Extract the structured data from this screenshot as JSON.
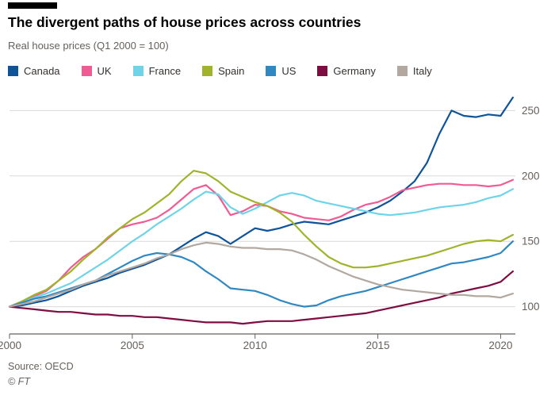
{
  "header": {
    "title": "The divergent paths of house prices across countries",
    "subtitle": "Real house prices (Q1 2000 = 100)"
  },
  "footer": {
    "source": "Source: OECD",
    "credit": "© FT"
  },
  "chart_data": {
    "type": "line",
    "title": "The divergent paths of house prices across countries",
    "subtitle": "Real house prices (Q1 2000 = 100)",
    "x_start": 2000,
    "x_step": 0.5,
    "xlim": [
      2000,
      2020.6
    ],
    "ylim": [
      84,
      266
    ],
    "x_ticks": [
      2000,
      2005,
      2010,
      2015,
      2020
    ],
    "y_ticks": [
      100,
      150,
      200,
      250
    ],
    "grid": "horizontal",
    "legend_position": "top",
    "colors": {
      "axis": "#66605c",
      "gridline": "#d9d9d9",
      "title": "#000000",
      "subtitle": "#66605c"
    },
    "series": [
      {
        "name": "Canada",
        "color": "#0f5499",
        "values": [
          100,
          101,
          103,
          105,
          108,
          112,
          116,
          119,
          122,
          126,
          129,
          132,
          136,
          140,
          146,
          152,
          157,
          154,
          148,
          154,
          160,
          158,
          160,
          163,
          165,
          164,
          163,
          166,
          169,
          172,
          176,
          181,
          188,
          196,
          210,
          232,
          250,
          246,
          245,
          247,
          246,
          260
        ]
      },
      {
        "name": "UK",
        "color": "#ef5b92",
        "values": [
          100,
          104,
          108,
          112,
          120,
          130,
          138,
          144,
          152,
          160,
          163,
          165,
          168,
          174,
          182,
          190,
          193,
          185,
          170,
          173,
          178,
          177,
          173,
          171,
          168,
          167,
          166,
          169,
          174,
          178,
          180,
          184,
          189,
          191,
          193,
          194,
          194,
          193,
          193,
          192,
          193,
          197
        ]
      },
      {
        "name": "France",
        "color": "#6ed4e8",
        "values": [
          100,
          103,
          107,
          110,
          114,
          118,
          124,
          130,
          136,
          143,
          150,
          156,
          163,
          169,
          175,
          182,
          188,
          186,
          176,
          171,
          175,
          180,
          185,
          187,
          185,
          181,
          179,
          177,
          175,
          173,
          171,
          170,
          171,
          172,
          174,
          176,
          177,
          178,
          180,
          183,
          185,
          190
        ]
      },
      {
        "name": "Spain",
        "color": "#a0b32a",
        "values": [
          100,
          104,
          109,
          113,
          120,
          127,
          136,
          144,
          153,
          160,
          167,
          172,
          179,
          186,
          196,
          204,
          202,
          196,
          188,
          184,
          180,
          177,
          172,
          165,
          155,
          146,
          138,
          133,
          130,
          130,
          131,
          133,
          135,
          137,
          139,
          142,
          145,
          148,
          150,
          151,
          150,
          155
        ]
      },
      {
        "name": "US",
        "color": "#3088c2",
        "values": [
          100,
          103,
          106,
          108,
          111,
          114,
          117,
          120,
          125,
          130,
          135,
          139,
          141,
          140,
          138,
          134,
          127,
          121,
          114,
          113,
          112,
          109,
          105,
          102,
          100,
          101,
          105,
          108,
          110,
          112,
          115,
          118,
          121,
          124,
          127,
          130,
          133,
          134,
          136,
          138,
          141,
          150
        ]
      },
      {
        "name": "Germany",
        "color": "#7e0d42",
        "values": [
          100,
          99,
          98,
          97,
          96,
          96,
          95,
          94,
          94,
          93,
          93,
          92,
          92,
          91,
          90,
          89,
          88,
          88,
          88,
          87,
          88,
          89,
          89,
          89,
          90,
          91,
          92,
          93,
          94,
          95,
          97,
          99,
          101,
          103,
          105,
          107,
          110,
          112,
          114,
          116,
          119,
          127
        ]
      },
      {
        "name": "Italy",
        "color": "#b2a8a0",
        "values": [
          100,
          102,
          104,
          107,
          110,
          113,
          117,
          120,
          124,
          127,
          130,
          133,
          137,
          140,
          144,
          147,
          149,
          148,
          146,
          145,
          145,
          144,
          144,
          143,
          140,
          136,
          131,
          127,
          123,
          120,
          117,
          115,
          113,
          112,
          111,
          110,
          109,
          109,
          108,
          108,
          107,
          110
        ]
      }
    ]
  }
}
